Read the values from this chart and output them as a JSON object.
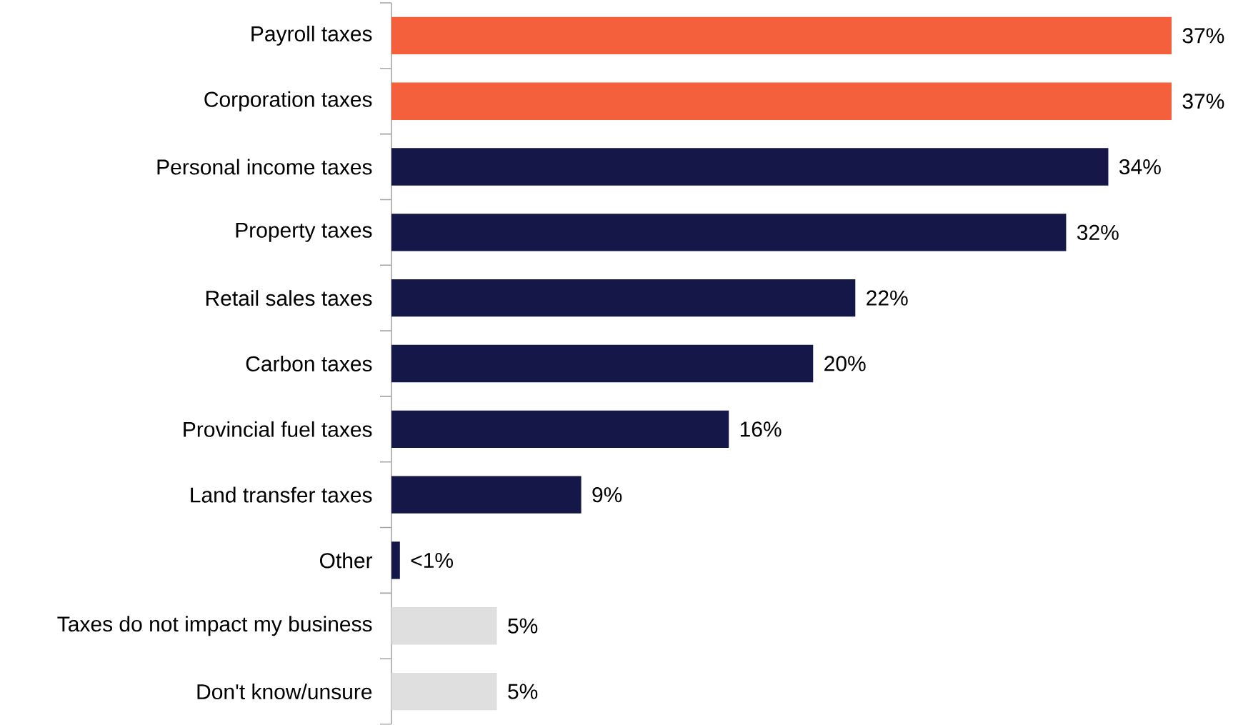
{
  "chart_data": {
    "type": "bar",
    "orientation": "horizontal",
    "tick_labels": "y",
    "categories": [
      "Payroll taxes",
      "Corporation taxes",
      "Personal income taxes",
      "Property taxes",
      "Retail sales taxes",
      "Carbon taxes",
      "Provincial fuel taxes",
      "Land transfer taxes",
      "Other",
      "Taxes do not impact my business",
      "Don't know/unsure"
    ],
    "values": [
      37,
      37,
      34,
      32,
      22,
      20,
      16,
      9,
      0.4,
      5,
      5
    ],
    "value_labels": [
      "37%",
      "37%",
      "34%",
      "32%",
      "22%",
      "20%",
      "16%",
      "9%",
      "<1%",
      "5%",
      "5%"
    ],
    "colors": [
      "#f4603c",
      "#f4603c",
      "#141747",
      "#141747",
      "#141747",
      "#141747",
      "#141747",
      "#141747",
      "#141747",
      "#e0dfdf",
      "#e0dfdf"
    ]
  }
}
